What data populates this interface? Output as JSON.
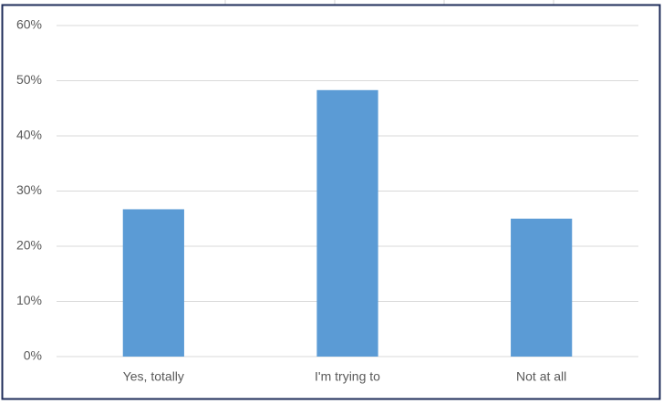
{
  "chart_data": {
    "type": "bar",
    "categories": [
      "Yes, totally",
      "I'm trying to",
      "Not at all"
    ],
    "values": [
      26.7,
      48.3,
      25.0
    ],
    "color": "#5b9bd5",
    "ylim": [
      0,
      60
    ],
    "yticks": [
      {
        "value": 0,
        "label": "0%"
      },
      {
        "value": 10,
        "label": "10%"
      },
      {
        "value": 20,
        "label": "20%"
      },
      {
        "value": 30,
        "label": "30%"
      },
      {
        "value": 40,
        "label": "40%"
      },
      {
        "value": 50,
        "label": "50%"
      },
      {
        "value": 60,
        "label": "60%"
      }
    ],
    "grid": true
  }
}
